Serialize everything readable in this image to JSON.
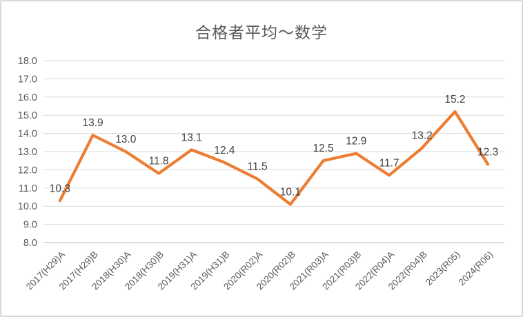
{
  "chart_data": {
    "type": "line",
    "title": "合格者平均～数学",
    "categories": [
      "2017(H29)A",
      "2017(H29)B",
      "2018(H30)A",
      "2018(H30)B",
      "2019(H31)A",
      "2019(H31)B",
      "2020(R02)A",
      "2020(R02)B",
      "2021(R03)A",
      "2021(R03)B",
      "2022(R04)A",
      "2022(R04)B",
      "2023(R05)",
      "2024(R06)"
    ],
    "values": [
      10.3,
      13.9,
      13.0,
      11.8,
      13.1,
      12.4,
      11.5,
      10.1,
      12.5,
      12.9,
      11.7,
      13.2,
      15.2,
      12.3
    ],
    "data_labels": [
      "10.3",
      "13.9",
      "13.0",
      "11.8",
      "13.1",
      "12.4",
      "11.5",
      "10.1",
      "12.5",
      "12.9",
      "11.7",
      "13.2",
      "15.2",
      "12.3"
    ],
    "ylim": [
      8.0,
      18.0
    ],
    "ytick_step": 1.0,
    "ytick_labels": [
      "8.0",
      "9.0",
      "10.0",
      "11.0",
      "12.0",
      "13.0",
      "14.0",
      "15.0",
      "16.0",
      "17.0",
      "18.0"
    ],
    "xlabel": "",
    "ylabel": "",
    "grid": true,
    "legend_position": "none",
    "colors": {
      "line": "#ED7D31",
      "data_label": "#404040",
      "axis_text": "#595959",
      "gridline": "#D9D9D9",
      "axis_line": "#D0D0D0",
      "title": "#595959",
      "frame_border": "#D9D9D9",
      "background": "#FFFFFF"
    }
  }
}
